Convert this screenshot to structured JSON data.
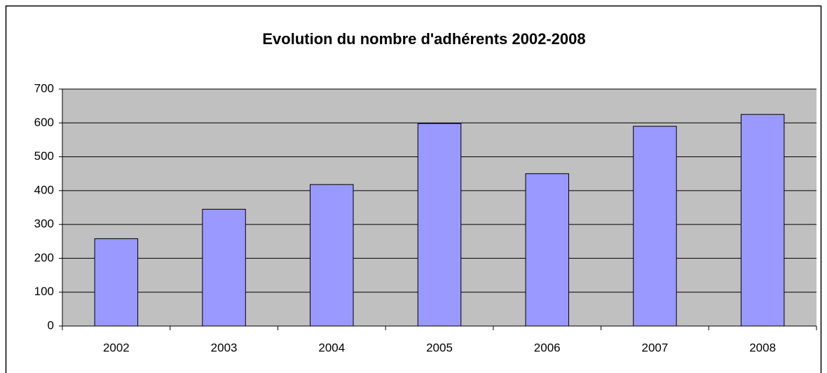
{
  "chart_data": {
    "type": "bar",
    "title": "Evolution du nombre d'adhérents 2002-2008",
    "categories": [
      "2002",
      "2003",
      "2004",
      "2005",
      "2006",
      "2007",
      "2008"
    ],
    "values": [
      258,
      345,
      418,
      598,
      450,
      590,
      625
    ],
    "color": "#9999ff",
    "ylim": [
      0,
      700
    ],
    "yticks": [
      0,
      100,
      200,
      300,
      400,
      500,
      600,
      700
    ],
    "grid": true
  }
}
